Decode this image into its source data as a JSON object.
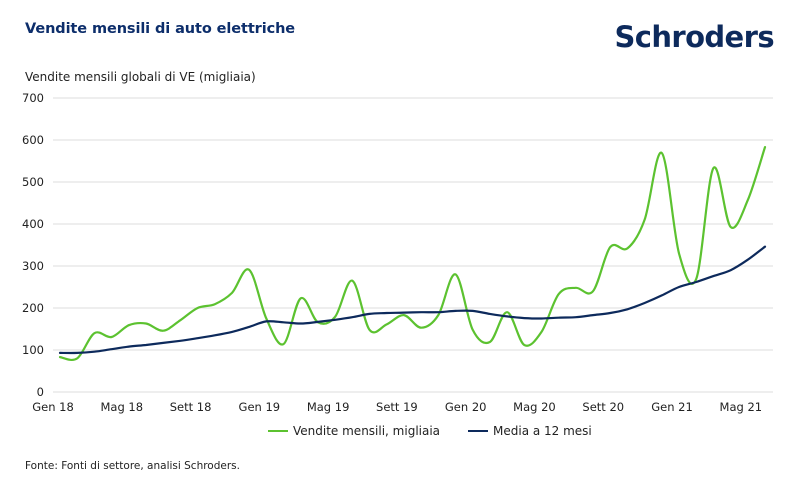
{
  "header": {
    "title": "Vendite mensili di auto elettriche",
    "logo_text": "Schroders"
  },
  "footer": {
    "source": "Fonte: Fonti di settore, analisi Schroders."
  },
  "colors": {
    "title": "#0d2e6b",
    "green_series": "#5cc230",
    "navy_series": "#0d2a5c",
    "gridline": "#dddddd"
  },
  "chart_data": {
    "type": "line",
    "title": "Vendite mensili di auto elettriche",
    "ylabel": "Vendite mensili globali di VE (migliaia)",
    "xlabel": "",
    "ylim": [
      0,
      700
    ],
    "yticks": [
      0,
      100,
      200,
      300,
      400,
      500,
      600,
      700
    ],
    "grid": true,
    "legend_position": "bottom",
    "x_months": 42,
    "x_start": "Gen 18",
    "x_end": "Giu 21",
    "xtick_labels": [
      {
        "month_index": 0,
        "label": "Gen 18"
      },
      {
        "month_index": 4,
        "label": "Mag 18"
      },
      {
        "month_index": 8,
        "label": "Sett 18"
      },
      {
        "month_index": 12,
        "label": "Gen 19"
      },
      {
        "month_index": 16,
        "label": "Mag 19"
      },
      {
        "month_index": 20,
        "label": "Sett 19"
      },
      {
        "month_index": 24,
        "label": "Gen 20"
      },
      {
        "month_index": 28,
        "label": "Mag 20"
      },
      {
        "month_index": 32,
        "label": "Sett 20"
      },
      {
        "month_index": 36,
        "label": "Gen 21"
      },
      {
        "month_index": 40,
        "label": "Mag 21"
      }
    ],
    "series": [
      {
        "name": "Vendite mensili, migliaia",
        "color": "#5cc230",
        "values": [
          83,
          80,
          140,
          131,
          159,
          163,
          146,
          171,
          200,
          209,
          236,
          291,
          175,
          114,
          223,
          166,
          179,
          265,
          148,
          161,
          183,
          153,
          183,
          280,
          148,
          119,
          190,
          112,
          143,
          233,
          248,
          240,
          345,
          342,
          410,
          569,
          330,
          269,
          533,
          393,
          457,
          583
        ]
      },
      {
        "name": "Media a 12 mesi",
        "color": "#0d2a5c",
        "values": [
          93,
          93,
          96,
          102,
          108,
          112,
          117,
          122,
          128,
          135,
          143,
          155,
          168,
          166,
          163,
          167,
          172,
          178,
          186,
          188,
          189,
          190,
          190,
          193,
          193,
          186,
          180,
          176,
          175,
          177,
          178,
          183,
          188,
          197,
          212,
          230,
          250,
          262,
          276,
          290,
          315,
          346
        ]
      }
    ]
  }
}
